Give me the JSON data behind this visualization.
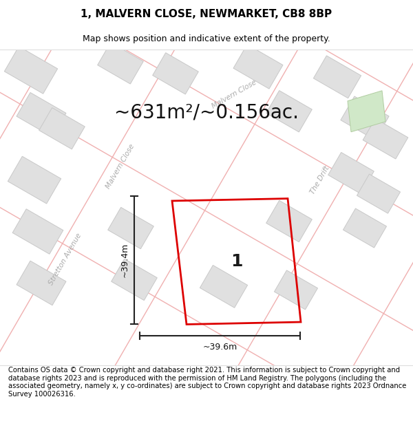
{
  "title": "1, MALVERN CLOSE, NEWMARKET, CB8 8BP",
  "subtitle": "Map shows position and indicative extent of the property.",
  "area_text": "~631m²/~0.156ac.",
  "width_label": "~39.6m",
  "height_label": "~39.4m",
  "plot_number": "1",
  "footer_text": "Contains OS data © Crown copyright and database right 2021. This information is subject to Crown copyright and database rights 2023 and is reproduced with the permission of HM Land Registry. The polygons (including the associated geometry, namely x, y co-ordinates) are subject to Crown copyright and database rights 2023 Ordnance Survey 100026316.",
  "bg_color": "#ffffff",
  "map_bg": "#ffffff",
  "road_edge_color": "#f0b0b0",
  "building_fill": "#e0e0e0",
  "building_edge": "#c8c8c8",
  "plot_outline_color": "#dd0000",
  "dimension_color": "#222222",
  "street_label_color": "#aaaaaa",
  "green_fill": "#d0e8c8",
  "green_edge": "#b0cca0",
  "title_fontsize": 11,
  "subtitle_fontsize": 9,
  "area_fontsize": 20,
  "plot_number_fontsize": 18,
  "footer_fontsize": 7.2,
  "dim_fontsize": 9
}
